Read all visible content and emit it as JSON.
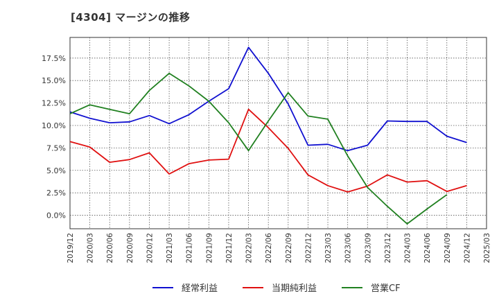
{
  "chart_title": "[4304]  マージンの推移",
  "chart_data": {
    "type": "line",
    "title": "[4304]  マージンの推移",
    "xlabel": "",
    "ylabel": "",
    "x": [
      "2019/12",
      "2020/03",
      "2020/06",
      "2020/09",
      "2020/12",
      "2021/03",
      "2021/06",
      "2021/09",
      "2021/12",
      "2022/03",
      "2022/06",
      "2022/09",
      "2022/12",
      "2023/03",
      "2023/06",
      "2023/09",
      "2023/12",
      "2024/03",
      "2024/06",
      "2024/09",
      "2024/12",
      "2025/03"
    ],
    "ylim": [
      -1.5,
      19.8
    ],
    "yticks": [
      0.0,
      2.5,
      5.0,
      7.5,
      10.0,
      12.5,
      15.0,
      17.5
    ],
    "ytick_labels": [
      "0.0%",
      "2.5%",
      "5.0%",
      "7.5%",
      "10.0%",
      "12.5%",
      "15.0%",
      "17.5%"
    ],
    "grid": true,
    "legend_position": "bottom",
    "series": [
      {
        "name": "経常利益",
        "color": "#1010d0",
        "values": [
          11.5,
          10.8,
          10.3,
          10.4,
          11.1,
          10.2,
          11.2,
          12.7,
          14.1,
          18.7,
          15.8,
          12.4,
          7.8,
          7.9,
          7.2,
          7.8,
          10.5,
          10.45,
          10.45,
          8.8,
          8.1,
          null
        ]
      },
      {
        "name": "当期純利益",
        "color": "#e01010",
        "values": [
          8.2,
          7.6,
          5.9,
          6.2,
          6.95,
          4.6,
          5.75,
          6.15,
          6.25,
          11.8,
          9.75,
          7.45,
          4.5,
          3.3,
          2.6,
          3.25,
          4.5,
          3.7,
          3.85,
          2.65,
          3.3,
          null
        ]
      },
      {
        "name": "営業CF",
        "color": "#208020",
        "values": [
          11.3,
          12.3,
          11.8,
          11.3,
          13.9,
          15.8,
          14.4,
          12.7,
          10.3,
          7.2,
          10.5,
          13.65,
          11.05,
          10.7,
          6.6,
          3.1,
          1.0,
          -0.95,
          0.7,
          2.3,
          null,
          null
        ]
      }
    ]
  }
}
